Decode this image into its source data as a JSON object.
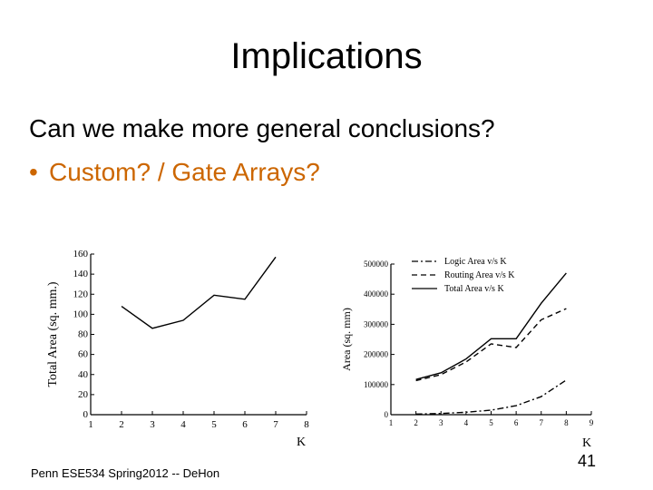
{
  "slide": {
    "title": "Implications",
    "line1": "Can we make more general conclusions?",
    "bullet": "Custom? / Gate Arrays?",
    "footer": "Penn ESE534 Spring2012 -- DeHon",
    "page": "41"
  },
  "chart_data": [
    {
      "type": "line",
      "title": "",
      "xlabel": "K",
      "ylabel": "Total Area (sq. mm.)",
      "xlim": [
        1,
        8
      ],
      "ylim": [
        0,
        160
      ],
      "xticks": [
        "1",
        "2",
        "3",
        "4",
        "5",
        "6",
        "7",
        "8"
      ],
      "yticks": [
        "0",
        "20",
        "40",
        "60",
        "80",
        "100",
        "120",
        "140",
        "160"
      ],
      "series": [
        {
          "x": [
            2,
            3,
            4,
            5,
            6,
            7
          ],
          "values": [
            108,
            86,
            94,
            119,
            115,
            157
          ]
        }
      ]
    },
    {
      "type": "line",
      "title": "",
      "xlabel": "K",
      "ylabel": "Area (sq. mm)",
      "xlim": [
        1,
        9
      ],
      "ylim": [
        0,
        500000
      ],
      "xticks": [
        "1",
        "2",
        "3",
        "4",
        "5",
        "6",
        "7",
        "8",
        "9"
      ],
      "yticks": [
        "0",
        "100000",
        "200000",
        "300000",
        "400000",
        "500000"
      ],
      "legend": "top-right",
      "series": [
        {
          "name": "Logic Area v/s K",
          "style": "dashdot",
          "x": [
            2,
            3,
            4,
            5,
            6,
            7,
            8
          ],
          "values": [
            2000,
            4000,
            8000,
            15000,
            30000,
            60000,
            115000
          ]
        },
        {
          "name": "Routing Area v/s K",
          "style": "dashed",
          "x": [
            2,
            3,
            4,
            5,
            6,
            7,
            8
          ],
          "values": [
            113000,
            133000,
            175000,
            235000,
            223000,
            315000,
            352000
          ]
        },
        {
          "name": "Total Area v/s K",
          "style": "solid",
          "x": [
            2,
            3,
            4,
            5,
            6,
            7,
            8
          ],
          "values": [
            117000,
            139000,
            185000,
            252000,
            252000,
            370000,
            470000
          ]
        }
      ]
    }
  ]
}
